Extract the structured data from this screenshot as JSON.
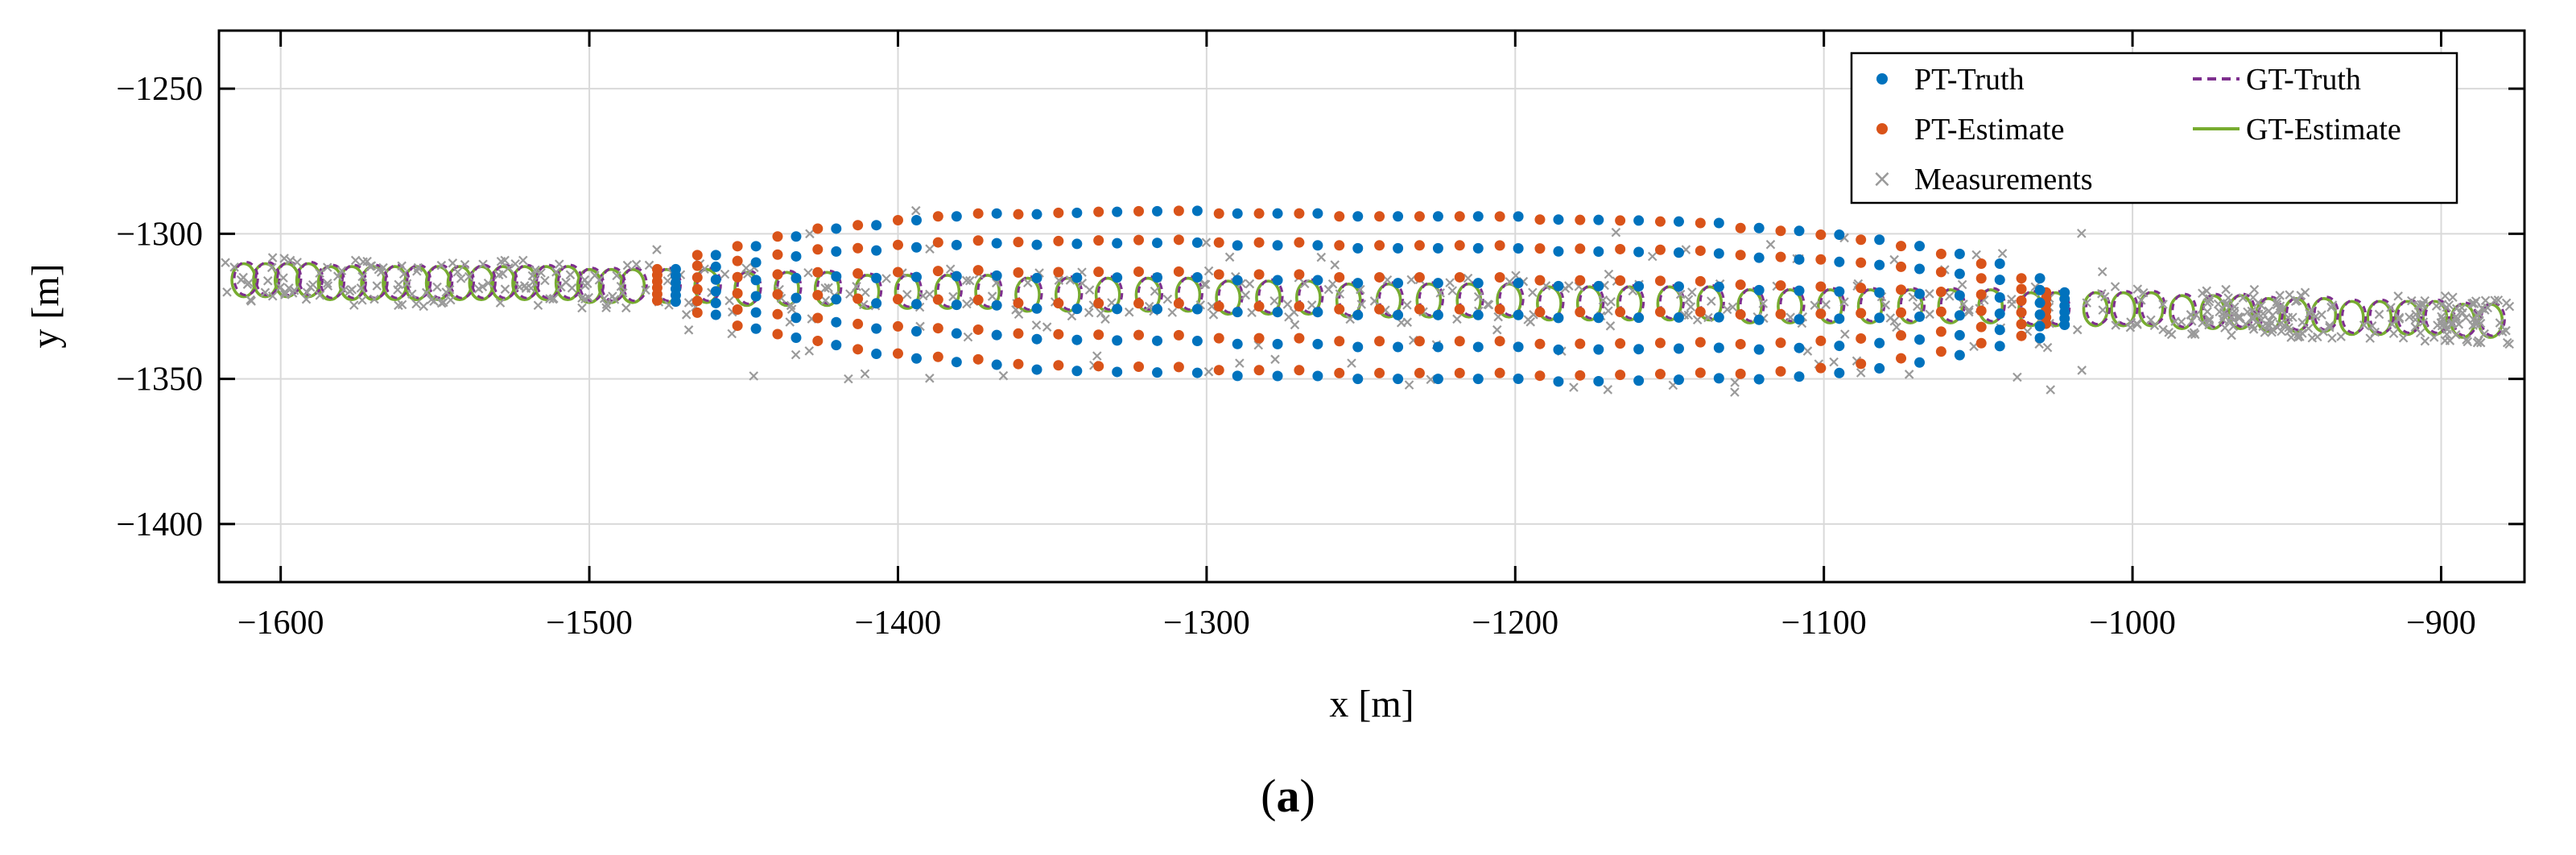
{
  "figure": {
    "caption_open": "(",
    "caption_letter": "a",
    "caption_close": ")"
  },
  "colors": {
    "pt_truth": "#0072BD",
    "pt_estimate": "#D95319",
    "measurements": "#9a9a9a",
    "gt_truth": "#7E2F8E",
    "gt_estimate": "#77AC30",
    "grid": "#d9d9d9"
  },
  "chart_data": {
    "type": "scatter",
    "xlabel": "x [m]",
    "ylabel": "y [m]",
    "xlim": [
      -1620,
      -873
    ],
    "ylim": [
      -1420,
      -1230
    ],
    "xticks": [
      -1600,
      -1500,
      -1400,
      -1300,
      -1200,
      -1100,
      -1000,
      -900
    ],
    "yticks": [
      -1250,
      -1300,
      -1350,
      -1400
    ],
    "x_tick_labels": [
      "−1600",
      "−1500",
      "−1400",
      "−1300",
      "−1200",
      "−1100",
      "−1000",
      "−900"
    ],
    "y_tick_labels": [
      "−1250",
      "−1300",
      "−1350",
      "−1400"
    ],
    "grid": true,
    "legend_position": "top-right",
    "legend": [
      "PT-Truth",
      "PT-Estimate",
      "Measurements",
      "GT-Truth",
      "GT-Estimate"
    ],
    "centers_x": [
      -1612,
      -1605,
      -1598,
      -1591,
      -1584,
      -1577,
      -1570,
      -1563,
      -1556,
      -1549,
      -1542,
      -1535,
      -1528,
      -1521,
      -1514,
      -1507,
      -1500,
      -1493,
      -1486,
      -1475,
      -1462,
      -1449,
      -1436,
      -1423,
      -1410,
      -1397,
      -1384,
      -1371,
      -1358,
      -1345,
      -1332,
      -1319,
      -1306,
      -1293,
      -1280,
      -1267,
      -1254,
      -1241,
      -1228,
      -1215,
      -1202,
      -1189,
      -1176,
      -1163,
      -1150,
      -1137,
      -1124,
      -1111,
      -1098,
      -1085,
      -1072,
      -1059,
      -1046,
      -1033,
      -1025,
      -1012,
      -1003,
      -994,
      -984,
      -974,
      -965,
      -956,
      -947,
      -938,
      -929,
      -920,
      -911,
      -902,
      -893,
      -884
    ],
    "centers_y": [
      -1316,
      -1316,
      -1316,
      -1316,
      -1317,
      -1317,
      -1317,
      -1317,
      -1317,
      -1317,
      -1317,
      -1317,
      -1317,
      -1317,
      -1317,
      -1317,
      -1318,
      -1318,
      -1318,
      -1318,
      -1318,
      -1319,
      -1319,
      -1319,
      -1320,
      -1320,
      -1320,
      -1320,
      -1321,
      -1321,
      -1321,
      -1321,
      -1321,
      -1322,
      -1322,
      -1322,
      -1323,
      -1323,
      -1323,
      -1323,
      -1323,
      -1324,
      -1324,
      -1324,
      -1324,
      -1324,
      -1325,
      -1325,
      -1325,
      -1325,
      -1325,
      -1325,
      -1325,
      -1326,
      -1326,
      -1326,
      -1326,
      -1326,
      -1327,
      -1327,
      -1327,
      -1328,
      -1328,
      -1328,
      -1329,
      -1329,
      -1329,
      -1329,
      -1330,
      -1330
    ],
    "pt_offsets_truth": [
      -27,
      -16,
      -5,
      6,
      18,
      29
    ],
    "pt_offsets_estimate": [
      -25,
      -14,
      -3,
      8,
      19,
      29
    ],
    "pt_index_range": [
      19,
      54
    ]
  }
}
